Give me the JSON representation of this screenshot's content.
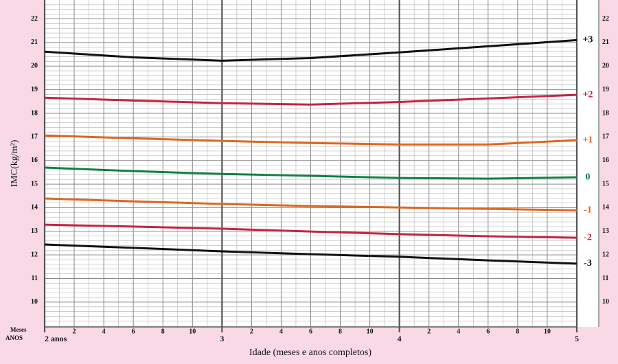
{
  "chart_data": {
    "type": "line",
    "y_label": "IMC(kg/m²)",
    "x_label": "Idade (meses e anos completos)",
    "minor_unit_label": "Meses",
    "major_unit_label": "ANOS",
    "x": [
      24,
      30,
      36,
      42,
      48,
      54,
      60
    ],
    "xlim": [
      24,
      60
    ],
    "x_major_ticks": [
      {
        "value": 24,
        "label": "2 anos"
      },
      {
        "value": 36,
        "label": "3"
      },
      {
        "value": 48,
        "label": "4"
      },
      {
        "value": 60,
        "label": "5"
      }
    ],
    "xticks": [
      {
        "value": 26,
        "label": "2"
      },
      {
        "value": 28,
        "label": "4"
      },
      {
        "value": 30,
        "label": "6"
      },
      {
        "value": 32,
        "label": "8"
      },
      {
        "value": 34,
        "label": "10"
      },
      {
        "value": 38,
        "label": "2"
      },
      {
        "value": 40,
        "label": "4"
      },
      {
        "value": 42,
        "label": "6"
      },
      {
        "value": 44,
        "label": "8"
      },
      {
        "value": 46,
        "label": "10"
      },
      {
        "value": 50,
        "label": "2"
      },
      {
        "value": 52,
        "label": "4"
      },
      {
        "value": 54,
        "label": "6"
      },
      {
        "value": 56,
        "label": "8"
      },
      {
        "value": 58,
        "label": "10"
      }
    ],
    "ylim": [
      8.95,
      22.8
    ],
    "yticks": [
      10,
      11,
      12,
      13,
      14,
      15,
      16,
      17,
      18,
      19,
      20,
      21,
      22
    ],
    "grid": true,
    "series": [
      {
        "name": "+3",
        "color": "#111111",
        "values": [
          20.61,
          20.37,
          20.23,
          20.34,
          20.58,
          20.84,
          21.1
        ]
      },
      {
        "name": "+2",
        "color": "#c82340",
        "values": [
          18.66,
          18.54,
          18.43,
          18.37,
          18.48,
          18.63,
          18.78
        ]
      },
      {
        "name": "+1",
        "color": "#e0661e",
        "values": [
          17.06,
          16.94,
          16.83,
          16.74,
          16.68,
          16.68,
          16.86
        ]
      },
      {
        "name": "0",
        "color": "#118044",
        "values": [
          15.7,
          15.55,
          15.43,
          15.35,
          15.26,
          15.23,
          15.29
        ]
      },
      {
        "name": "-1",
        "color": "#e0661e",
        "values": [
          14.39,
          14.27,
          14.16,
          14.07,
          14.01,
          13.95,
          13.89
        ]
      },
      {
        "name": "-2",
        "color": "#c82340",
        "values": [
          13.28,
          13.2,
          13.11,
          12.99,
          12.88,
          12.79,
          12.73
        ]
      },
      {
        "name": "-3",
        "color": "#111111",
        "values": [
          12.44,
          12.3,
          12.15,
          12.03,
          11.92,
          11.77,
          11.63
        ]
      }
    ]
  }
}
